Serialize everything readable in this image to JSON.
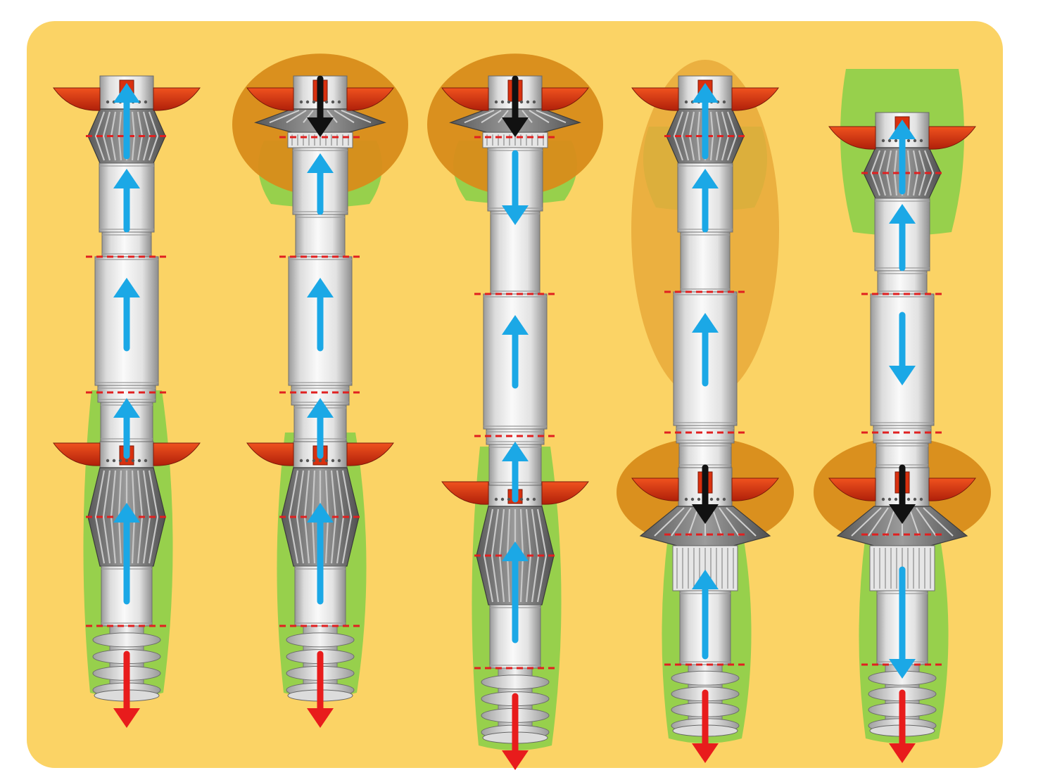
{
  "colors": {
    "background": "#ffffff",
    "panel": "#fbd365",
    "soil_green": "#8ecf4a",
    "anchor_orange": "#d88c1a",
    "fin_red": "#d9300f",
    "body_light": "#eeeeee",
    "body_mid": "#c8c8c8",
    "body_dark": "#8a8a8a",
    "bellows_dark": "#6b6b6b",
    "blue_arrow": "#1ba8e6",
    "red_arrow": "#e81c1c",
    "black_arrow": "#111111",
    "joint_dash": "#e02020"
  },
  "icons": {
    "blue": "blue-motion-arrow-icon",
    "red": "red-drill-arrow-icon",
    "black": "black-compression-arrow-icon"
  },
  "stages": [
    {
      "id": "stage-1",
      "name": "stage-1-extend",
      "fins": "both",
      "anchors": [],
      "green_bands": [
        "lower"
      ],
      "bellows": [
        "open",
        "open"
      ],
      "arrows": [
        {
          "dir": "up",
          "color": "blue",
          "segment": "top-bellows"
        },
        {
          "dir": "up",
          "color": "blue",
          "segment": "upper-body"
        },
        {
          "dir": "up",
          "color": "blue",
          "segment": "middle-body"
        },
        {
          "dir": "up",
          "color": "blue",
          "segment": "lower-neck"
        },
        {
          "dir": "up",
          "color": "blue",
          "segment": "lower-bellows"
        },
        {
          "dir": "down",
          "color": "red",
          "segment": "drill"
        }
      ]
    },
    {
      "id": "stage-2",
      "name": "stage-2-top-anchor",
      "fins": "both",
      "anchors": [
        "top"
      ],
      "green_bands": [
        "top",
        "lower"
      ],
      "bellows": [
        "compressed",
        "open"
      ],
      "arrows": [
        {
          "dir": "down",
          "color": "black",
          "segment": "top-anchor"
        },
        {
          "dir": "up",
          "color": "blue",
          "segment": "upper-body"
        },
        {
          "dir": "up",
          "color": "blue",
          "segment": "middle-body"
        },
        {
          "dir": "up",
          "color": "blue",
          "segment": "lower-neck"
        },
        {
          "dir": "up",
          "color": "blue",
          "segment": "lower-bellows"
        },
        {
          "dir": "down",
          "color": "red",
          "segment": "drill"
        }
      ]
    },
    {
      "id": "stage-3",
      "name": "stage-3-advance",
      "fins": "both",
      "anchors": [
        "top"
      ],
      "green_bands": [
        "top",
        "lower"
      ],
      "bellows": [
        "compressed",
        "open"
      ],
      "arrows": [
        {
          "dir": "down",
          "color": "black",
          "segment": "top-anchor"
        },
        {
          "dir": "down",
          "color": "blue",
          "segment": "upper-body"
        },
        {
          "dir": "up",
          "color": "blue",
          "segment": "middle-body"
        },
        {
          "dir": "up",
          "color": "blue",
          "segment": "lower-neck"
        },
        {
          "dir": "up",
          "color": "blue",
          "segment": "lower-bellows"
        },
        {
          "dir": "down",
          "color": "red",
          "segment": "drill"
        }
      ]
    },
    {
      "id": "stage-4",
      "name": "stage-4-bottom-anchor",
      "fins": "both",
      "anchors": [
        "top-light",
        "bottom"
      ],
      "green_bands": [
        "top",
        "lower"
      ],
      "bellows": [
        "open",
        "compressed"
      ],
      "arrows": [
        {
          "dir": "up",
          "color": "blue",
          "segment": "top-bellows"
        },
        {
          "dir": "up",
          "color": "blue",
          "segment": "upper-body"
        },
        {
          "dir": "up",
          "color": "blue",
          "segment": "middle-body"
        },
        {
          "dir": "down",
          "color": "black",
          "segment": "bottom-anchor"
        },
        {
          "dir": "up",
          "color": "blue",
          "segment": "lower-body"
        },
        {
          "dir": "down",
          "color": "red",
          "segment": "drill"
        }
      ]
    },
    {
      "id": "stage-5",
      "name": "stage-5-retract",
      "fins": "both",
      "anchors": [
        "bottom"
      ],
      "green_bands": [
        "top",
        "lower"
      ],
      "bellows": [
        "open",
        "compressed"
      ],
      "arrows": [
        {
          "dir": "up",
          "color": "blue",
          "segment": "top-bellows"
        },
        {
          "dir": "up",
          "color": "blue",
          "segment": "upper-body"
        },
        {
          "dir": "down",
          "color": "blue",
          "segment": "middle-body"
        },
        {
          "dir": "down",
          "color": "black",
          "segment": "bottom-anchor"
        },
        {
          "dir": "down",
          "color": "blue",
          "segment": "lower-body"
        },
        {
          "dir": "down",
          "color": "red",
          "segment": "drill"
        }
      ]
    }
  ]
}
